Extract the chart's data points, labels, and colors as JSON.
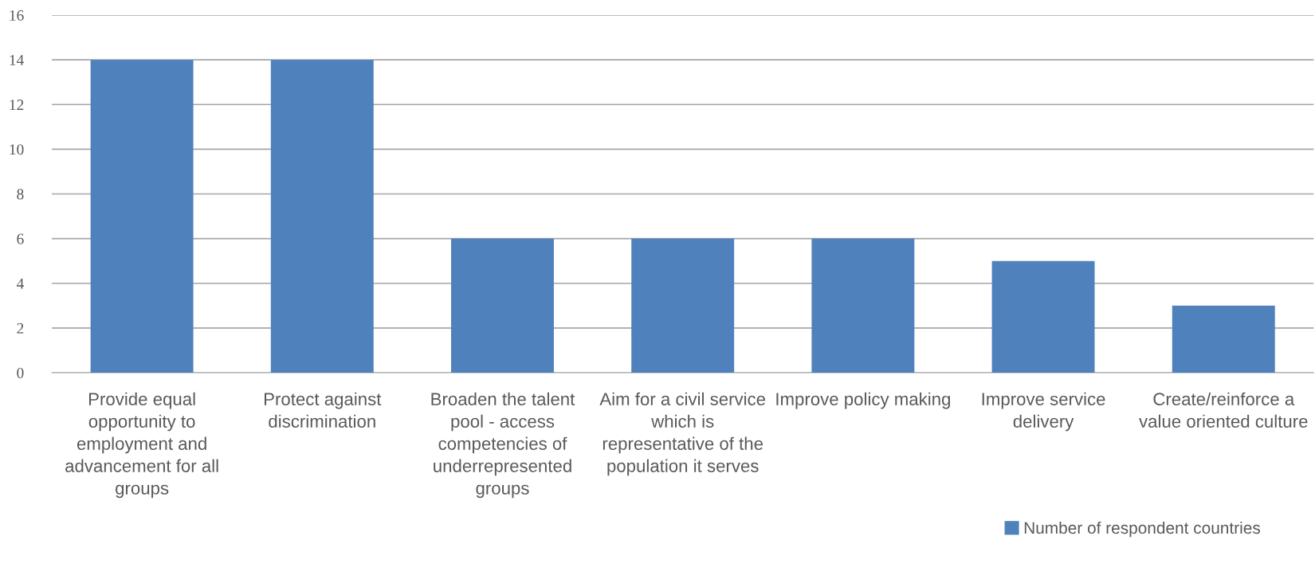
{
  "chart_data": {
    "type": "bar",
    "categories": [
      "Provide equal opportunity to employment and advancement for all groups",
      "Protect against discrimination",
      "Broaden the talent pool - access competencies of underrepresented groups",
      "Aim for a civil service which is representative of the population it serves",
      "Improve policy making",
      "Improve service delivery",
      "Create/reinforce a value oriented culture"
    ],
    "series": [
      {
        "name": "Number of respondent countries",
        "color": "#4f81bd",
        "values": [
          14,
          14,
          6,
          6,
          6,
          5,
          3
        ]
      }
    ],
    "ylim": [
      0,
      16
    ],
    "yticks": [
      0,
      2,
      4,
      6,
      8,
      10,
      12,
      14,
      16
    ],
    "grid": "y",
    "legend": "bottom right"
  }
}
